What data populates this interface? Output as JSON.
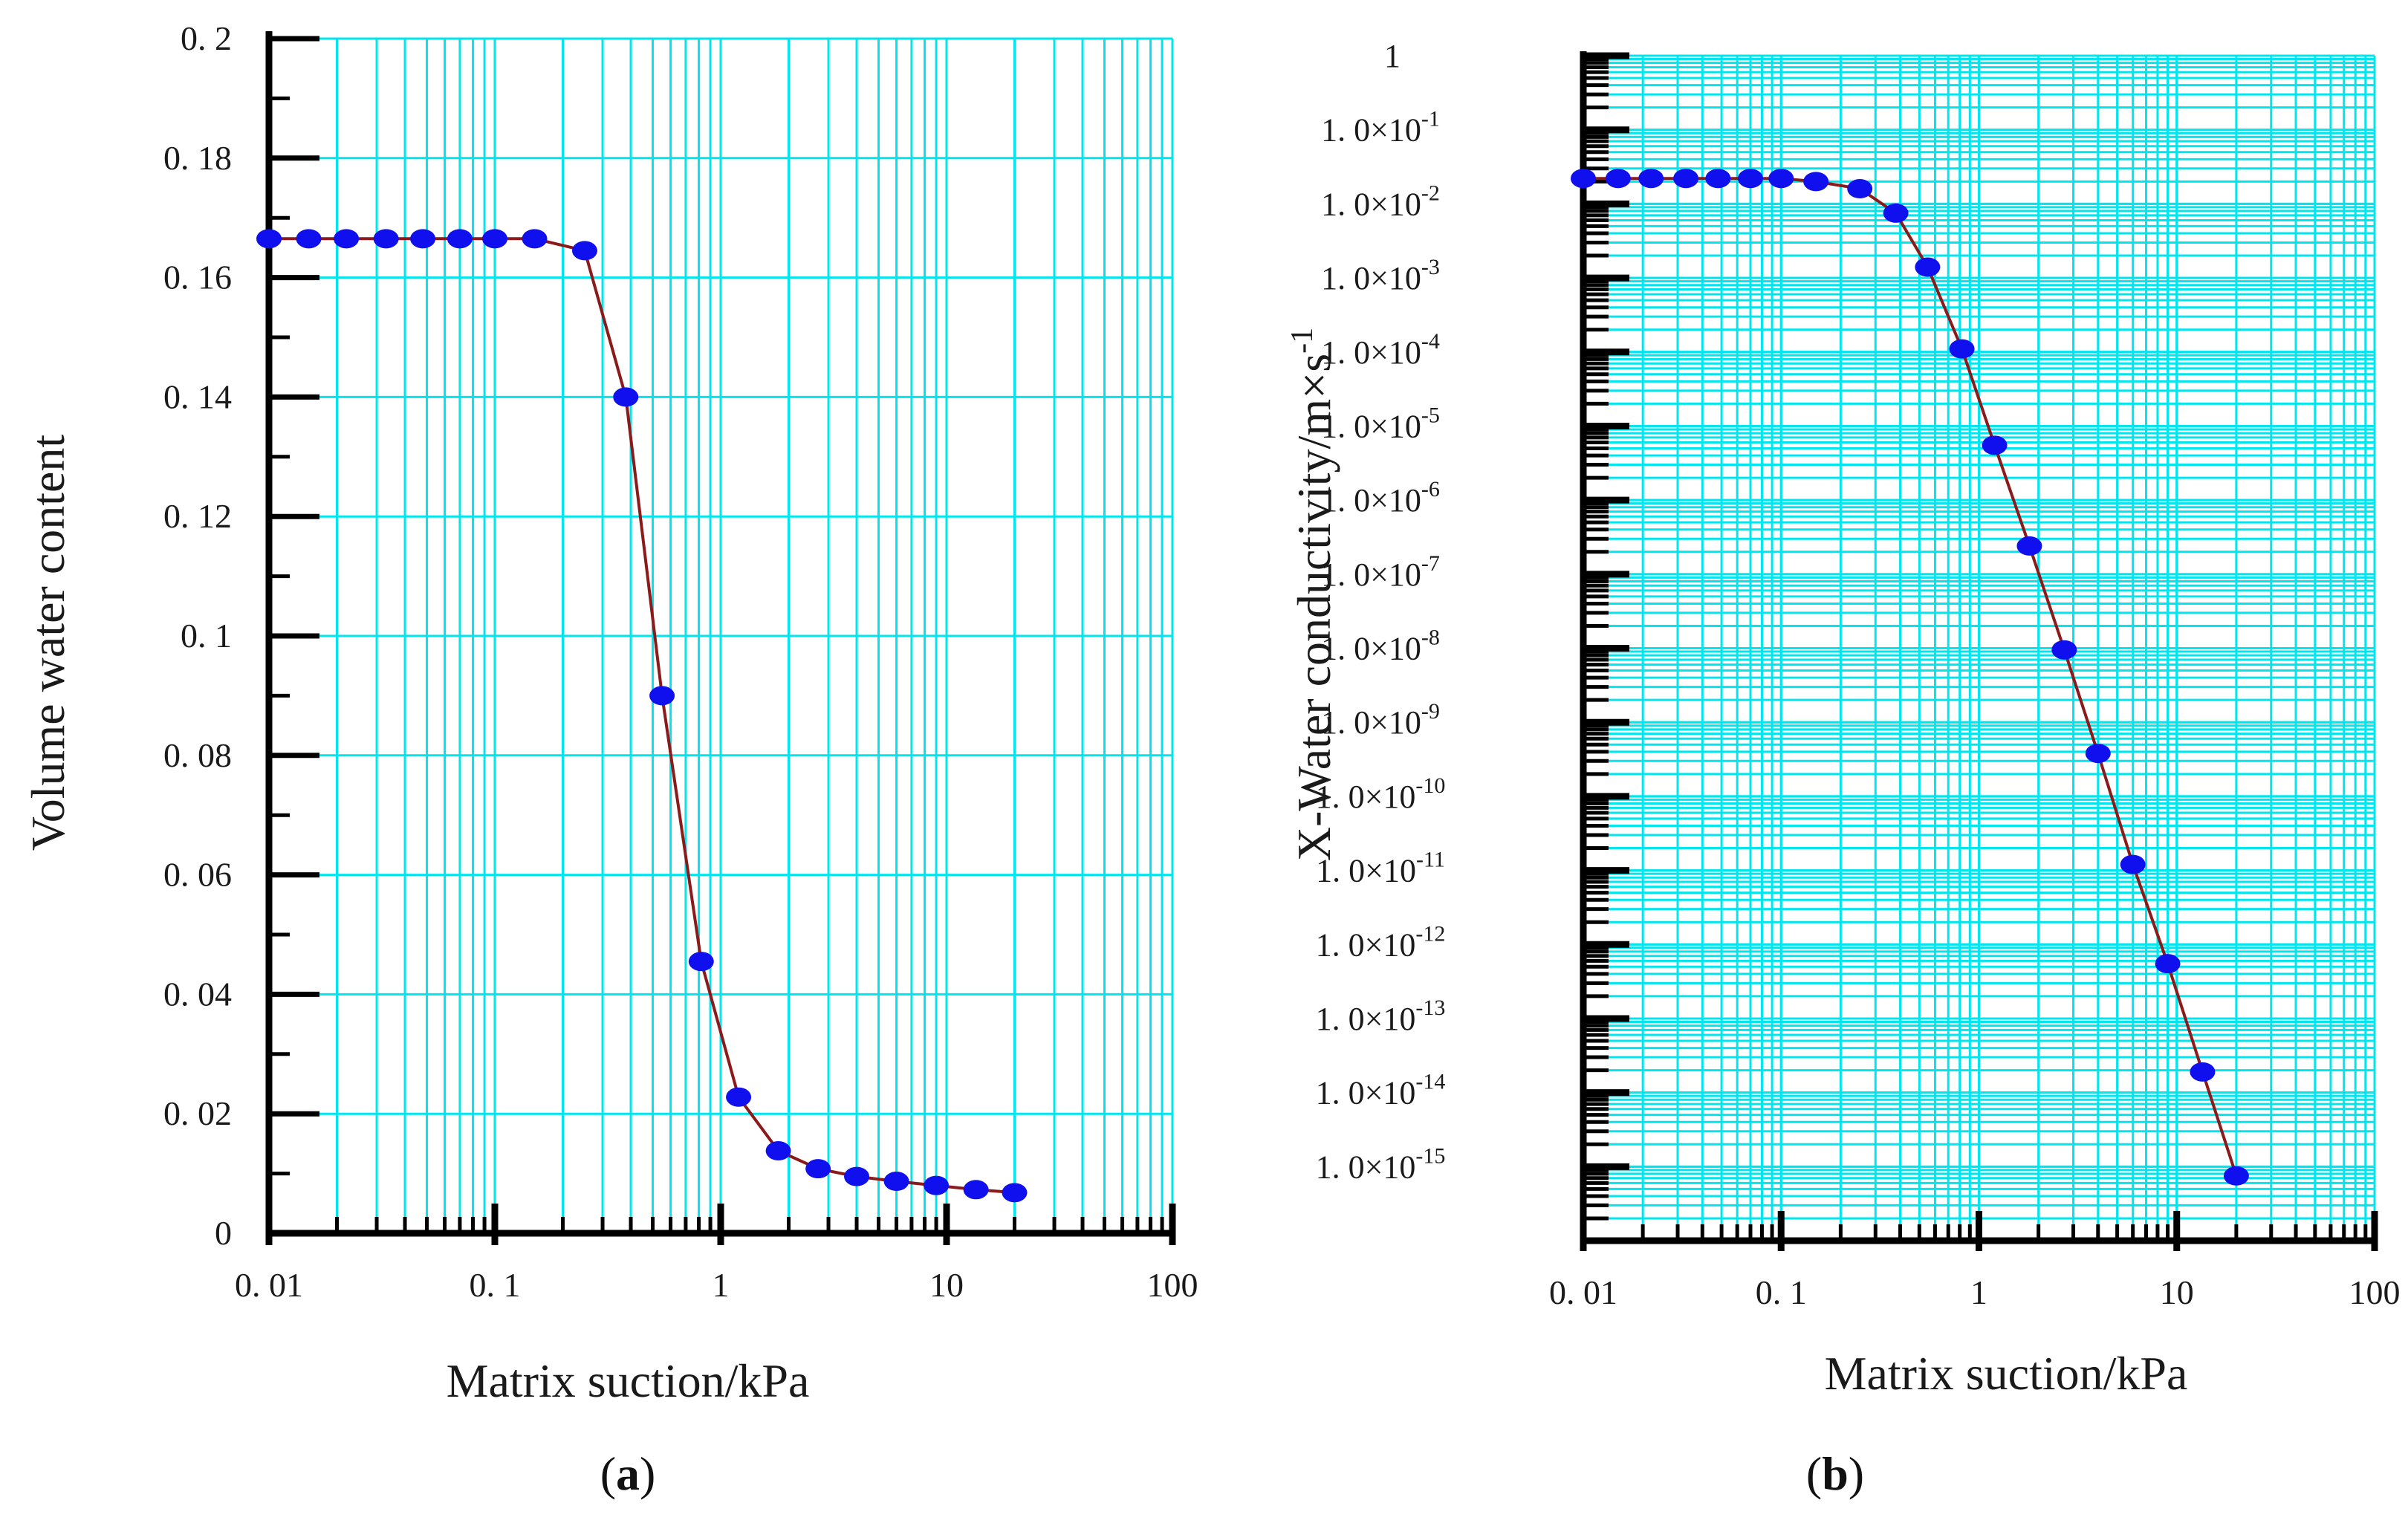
{
  "figure": {
    "panel_a_label": "(a)",
    "panel_a_letter": "a",
    "panel_b_label": "(b)",
    "panel_b_letter": "b"
  },
  "colors": {
    "grid": "#00e5ee",
    "axis": "#000000",
    "curve": "#8b1a1a",
    "marker": "#1010ee",
    "text": "#1a1a1a"
  },
  "chart_data": [
    {
      "id": "a",
      "type": "line",
      "title": "",
      "xlabel": "Matrix suction/kPa",
      "ylabel": "Volume water content",
      "xscale": "log",
      "xlim": [
        0.01,
        100
      ],
      "ylim": [
        0,
        0.2
      ],
      "grid": true,
      "xtick_labels": [
        "0. 01",
        "0. 1",
        "1",
        "10",
        "100"
      ],
      "xtick_values": [
        0.01,
        0.1,
        1,
        10,
        100
      ],
      "ytick_labels": [
        "0",
        "0. 02",
        "0. 04",
        "0. 06",
        "0. 08",
        "0. 1",
        "0. 12",
        "0. 14",
        "0. 16",
        "0. 18",
        "0. 2"
      ],
      "ytick_values": [
        0,
        0.02,
        0.04,
        0.06,
        0.08,
        0.1,
        0.12,
        0.14,
        0.16,
        0.18,
        0.2
      ],
      "series": [
        {
          "name": "Volume water content",
          "x": [
            0.01,
            0.015,
            0.022,
            0.033,
            0.048,
            0.07,
            0.1,
            0.15,
            0.25,
            0.38,
            0.55,
            0.82,
            1.2,
            1.8,
            2.7,
            4.0,
            6.0,
            9.0,
            13.5,
            20.0
          ],
          "y": [
            0.1665,
            0.1665,
            0.1665,
            0.1665,
            0.1665,
            0.1665,
            0.1665,
            0.1665,
            0.1645,
            0.14,
            0.09,
            0.0455,
            0.0228,
            0.0138,
            0.0108,
            0.0095,
            0.0087,
            0.008,
            0.0073,
            0.0068
          ]
        }
      ]
    },
    {
      "id": "b",
      "type": "line",
      "title": "",
      "xlabel": "Matrix suction/kPa",
      "ylabel": "X-Water conductivity/m×s",
      "ylabel_sup": "-1",
      "xscale": "log",
      "yscale": "log",
      "xlim": [
        0.01,
        100
      ],
      "ylim": [
        1e-16,
        1
      ],
      "grid": true,
      "xtick_labels": [
        "0. 01",
        "0. 1",
        "1",
        "10",
        "100"
      ],
      "xtick_values": [
        0.01,
        0.1,
        1,
        10,
        100
      ],
      "ytick_top_label": "1",
      "ytick_mantissa": "1. 0×10",
      "ytick_exponents": [
        "-1",
        "-2",
        "-3",
        "-4",
        "-5",
        "-6",
        "-7",
        "-8",
        "-9",
        "-10",
        "-11",
        "-12",
        "-13",
        "-14",
        "-15"
      ],
      "series": [
        {
          "name": "X-Water conductivity",
          "x": [
            0.01,
            0.015,
            0.022,
            0.033,
            0.048,
            0.07,
            0.1,
            0.15,
            0.25,
            0.38,
            0.55,
            0.82,
            1.2,
            1.8,
            2.7,
            4.0,
            6.0,
            9.0,
            13.5,
            20.0
          ],
          "y": [
            0.022,
            0.022,
            0.022,
            0.022,
            0.022,
            0.022,
            0.022,
            0.02,
            0.016,
            0.0075,
            0.0014,
            0.00011,
            5.5e-06,
            2.4e-07,
            9.5e-09,
            3.8e-10,
            1.2e-11,
            5.5e-13,
            1.9e-14,
            7.5e-16
          ]
        }
      ]
    }
  ]
}
